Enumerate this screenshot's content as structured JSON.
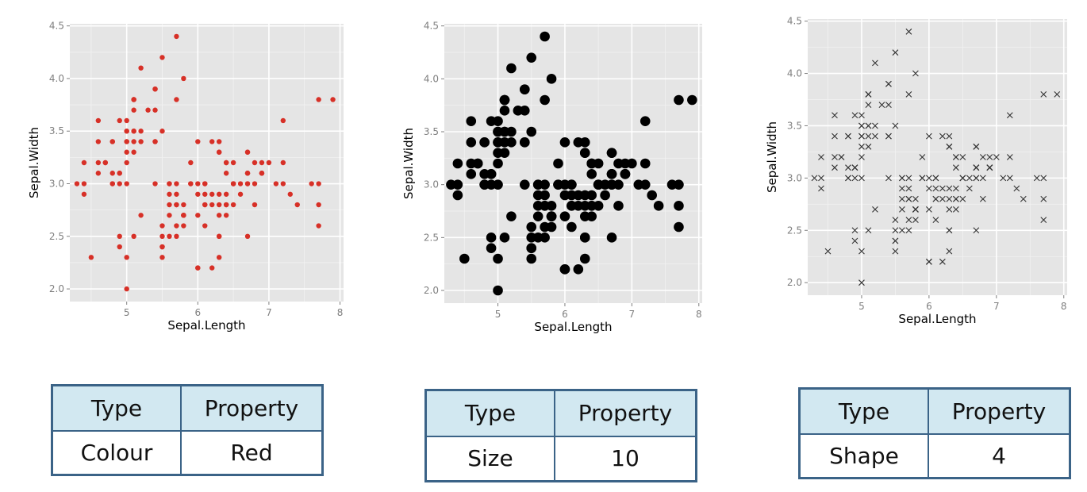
{
  "chart_data": [
    {
      "type": "scatter",
      "xlabel": "Sepal.Length",
      "ylabel": "Sepal.Width",
      "xlim": [
        4.2,
        8.05
      ],
      "ylim": [
        1.88,
        4.52
      ],
      "xticks": [
        "5",
        "6",
        "7",
        "8"
      ],
      "yticks": [
        "2.0",
        "2.5",
        "3.0",
        "3.5",
        "4.0",
        "4.5"
      ],
      "marker": "circle",
      "color": "#d73027",
      "grid": true
    },
    {
      "type": "scatter",
      "xlabel": "Sepal.Length",
      "ylabel": "Sepal.Width",
      "xlim": [
        4.2,
        8.05
      ],
      "ylim": [
        1.88,
        4.52
      ],
      "xticks": [
        "5",
        "6",
        "7",
        "8"
      ],
      "yticks": [
        "2.0",
        "2.5",
        "3.0",
        "3.5",
        "4.0",
        "4.5"
      ],
      "marker": "circle",
      "color": "#000000",
      "grid": true
    },
    {
      "type": "scatter",
      "xlabel": "Sepal.Length",
      "ylabel": "Sepal.Width",
      "xlim": [
        4.2,
        8.05
      ],
      "ylim": [
        1.88,
        4.52
      ],
      "xticks": [
        "5",
        "6",
        "7",
        "8"
      ],
      "yticks": [
        "2.0",
        "2.5",
        "3.0",
        "3.5",
        "4.0",
        "4.5"
      ],
      "marker": "x",
      "color": "#333333",
      "grid": true
    }
  ],
  "points": [
    [
      5.1,
      3.5
    ],
    [
      4.9,
      3.0
    ],
    [
      4.7,
      3.2
    ],
    [
      4.6,
      3.1
    ],
    [
      5.0,
      3.6
    ],
    [
      5.4,
      3.9
    ],
    [
      4.6,
      3.4
    ],
    [
      5.0,
      3.4
    ],
    [
      4.4,
      2.9
    ],
    [
      4.9,
      3.1
    ],
    [
      5.4,
      3.7
    ],
    [
      4.8,
      3.4
    ],
    [
      4.8,
      3.0
    ],
    [
      4.3,
      3.0
    ],
    [
      5.8,
      4.0
    ],
    [
      5.7,
      4.4
    ],
    [
      5.4,
      3.9
    ],
    [
      5.1,
      3.5
    ],
    [
      5.7,
      3.8
    ],
    [
      5.1,
      3.8
    ],
    [
      5.4,
      3.4
    ],
    [
      5.1,
      3.7
    ],
    [
      4.6,
      3.6
    ],
    [
      5.1,
      3.3
    ],
    [
      4.8,
      3.4
    ],
    [
      5.0,
      3.0
    ],
    [
      5.0,
      3.4
    ],
    [
      5.2,
      3.5
    ],
    [
      5.2,
      3.4
    ],
    [
      4.7,
      3.2
    ],
    [
      4.8,
      3.1
    ],
    [
      5.4,
      3.4
    ],
    [
      5.2,
      4.1
    ],
    [
      5.5,
      4.2
    ],
    [
      4.9,
      3.1
    ],
    [
      5.0,
      3.2
    ],
    [
      5.5,
      3.5
    ],
    [
      4.9,
      3.6
    ],
    [
      4.4,
      3.0
    ],
    [
      5.1,
      3.4
    ],
    [
      5.0,
      3.5
    ],
    [
      4.5,
      2.3
    ],
    [
      4.4,
      3.2
    ],
    [
      5.0,
      3.5
    ],
    [
      5.1,
      3.8
    ],
    [
      4.8,
      3.0
    ],
    [
      5.1,
      3.8
    ],
    [
      4.6,
      3.2
    ],
    [
      5.3,
      3.7
    ],
    [
      5.0,
      3.3
    ],
    [
      7.0,
      3.2
    ],
    [
      6.4,
      3.2
    ],
    [
      6.9,
      3.1
    ],
    [
      5.5,
      2.3
    ],
    [
      6.5,
      2.8
    ],
    [
      5.7,
      2.8
    ],
    [
      6.3,
      3.3
    ],
    [
      4.9,
      2.4
    ],
    [
      6.6,
      2.9
    ],
    [
      5.2,
      2.7
    ],
    [
      5.0,
      2.0
    ],
    [
      5.9,
      3.0
    ],
    [
      6.0,
      2.2
    ],
    [
      6.1,
      2.9
    ],
    [
      5.6,
      2.9
    ],
    [
      6.7,
      3.1
    ],
    [
      5.6,
      3.0
    ],
    [
      5.8,
      2.7
    ],
    [
      6.2,
      2.2
    ],
    [
      5.6,
      2.5
    ],
    [
      5.9,
      3.2
    ],
    [
      6.1,
      2.8
    ],
    [
      6.3,
      2.5
    ],
    [
      6.1,
      2.8
    ],
    [
      6.4,
      2.9
    ],
    [
      6.6,
      3.0
    ],
    [
      6.8,
      2.8
    ],
    [
      6.7,
      3.0
    ],
    [
      6.0,
      2.9
    ],
    [
      5.7,
      2.6
    ],
    [
      5.5,
      2.4
    ],
    [
      5.5,
      2.4
    ],
    [
      5.8,
      2.7
    ],
    [
      6.0,
      2.7
    ],
    [
      5.4,
      3.0
    ],
    [
      6.0,
      3.4
    ],
    [
      6.7,
      3.1
    ],
    [
      6.3,
      2.3
    ],
    [
      5.6,
      3.0
    ],
    [
      5.5,
      2.5
    ],
    [
      5.5,
      2.6
    ],
    [
      6.1,
      3.0
    ],
    [
      5.8,
      2.6
    ],
    [
      5.0,
      2.3
    ],
    [
      5.6,
      2.7
    ],
    [
      5.7,
      3.0
    ],
    [
      5.7,
      2.9
    ],
    [
      6.2,
      2.9
    ],
    [
      5.1,
      2.5
    ],
    [
      5.7,
      2.8
    ],
    [
      6.3,
      3.3
    ],
    [
      5.8,
      2.7
    ],
    [
      7.1,
      3.0
    ],
    [
      6.3,
      2.9
    ],
    [
      6.5,
      3.0
    ],
    [
      7.6,
      3.0
    ],
    [
      4.9,
      2.5
    ],
    [
      7.3,
      2.9
    ],
    [
      6.7,
      2.5
    ],
    [
      7.2,
      3.6
    ],
    [
      6.5,
      3.2
    ],
    [
      6.4,
      2.7
    ],
    [
      6.8,
      3.0
    ],
    [
      5.7,
      2.5
    ],
    [
      5.8,
      2.8
    ],
    [
      6.4,
      3.2
    ],
    [
      6.5,
      3.0
    ],
    [
      7.7,
      3.8
    ],
    [
      7.7,
      2.6
    ],
    [
      6.0,
      2.2
    ],
    [
      6.9,
      3.2
    ],
    [
      5.6,
      2.8
    ],
    [
      7.7,
      2.8
    ],
    [
      6.3,
      2.7
    ],
    [
      6.7,
      3.3
    ],
    [
      7.2,
      3.2
    ],
    [
      6.2,
      2.8
    ],
    [
      6.1,
      3.0
    ],
    [
      6.4,
      2.8
    ],
    [
      7.2,
      3.0
    ],
    [
      7.4,
      2.8
    ],
    [
      7.9,
      3.8
    ],
    [
      6.4,
      2.8
    ],
    [
      6.3,
      2.8
    ],
    [
      6.1,
      2.6
    ],
    [
      7.7,
      3.0
    ],
    [
      6.3,
      3.4
    ],
    [
      6.4,
      3.1
    ],
    [
      6.0,
      3.0
    ],
    [
      6.9,
      3.1
    ],
    [
      6.7,
      3.1
    ],
    [
      6.9,
      3.1
    ],
    [
      5.8,
      2.7
    ],
    [
      6.8,
      3.2
    ],
    [
      6.7,
      3.3
    ],
    [
      6.7,
      3.0
    ],
    [
      6.3,
      2.5
    ],
    [
      6.5,
      3.0
    ],
    [
      6.2,
      3.4
    ],
    [
      5.9,
      3.0
    ]
  ],
  "tables": [
    {
      "header": [
        "Type",
        "Property"
      ],
      "row": [
        "Colour",
        "Red"
      ]
    },
    {
      "header": [
        "Type",
        "Property"
      ],
      "row": [
        "Size",
        "10"
      ]
    },
    {
      "header": [
        "Type",
        "Property"
      ],
      "row": [
        "Shape",
        "4"
      ]
    }
  ]
}
